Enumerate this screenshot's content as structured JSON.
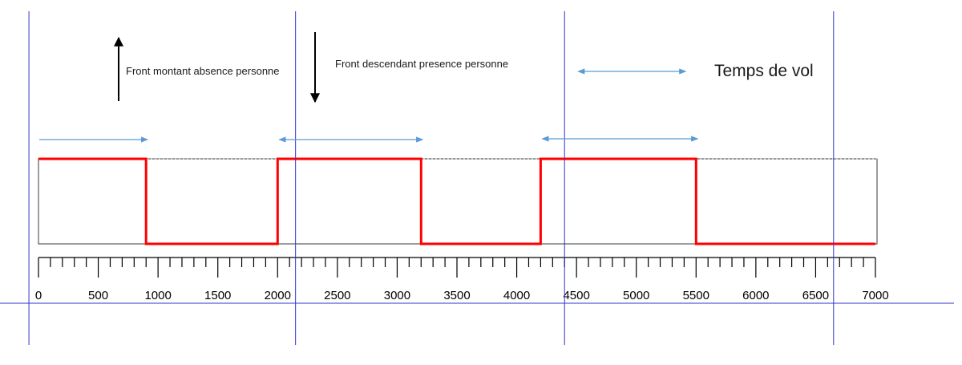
{
  "annotations": {
    "rising_edge": "Front montant absence personne",
    "falling_edge": "Front descendant presence personne",
    "flight_time": "Temps de vol"
  },
  "chart_data": {
    "type": "line",
    "title": "",
    "xlabel": "",
    "ylabel": "",
    "xlim": [
      0,
      7000
    ],
    "x_ticks": [
      "0",
      "500",
      "1000",
      "1500",
      "2000",
      "2500",
      "3000",
      "3500",
      "4000",
      "4500",
      "5000",
      "5500",
      "6000",
      "6500",
      "7000"
    ],
    "minor_tick_step": 100,
    "series": [
      {
        "points": [
          [
            0,
            1
          ],
          [
            900,
            1
          ],
          [
            900,
            0
          ],
          [
            2000,
            0
          ],
          [
            2000,
            1
          ],
          [
            3200,
            1
          ],
          [
            3200,
            0
          ],
          [
            4200,
            0
          ],
          [
            4200,
            1
          ],
          [
            5500,
            1
          ],
          [
            5500,
            0
          ],
          [
            7000,
            0
          ]
        ]
      }
    ],
    "vertical_markers": [
      -80,
      2150,
      4400,
      6650
    ],
    "flight_time_arrows": [
      [
        0,
        900
      ],
      [
        2000,
        3200
      ],
      [
        4200,
        5500
      ],
      [
        4500,
        5400
      ]
    ],
    "colors": {
      "signal": "#ff0000",
      "markers": "#3333cc",
      "arrows": "#5b9bd5",
      "high_reference": "#a6a6a6"
    }
  }
}
